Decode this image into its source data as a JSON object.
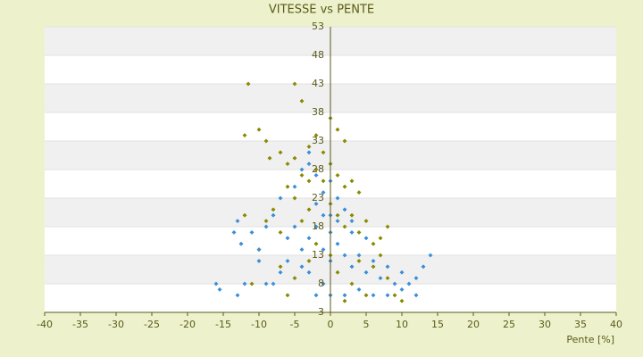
{
  "chart_data": {
    "type": "scatter",
    "title": "VITESSE vs PENTE",
    "x_label": "Pente [%]",
    "xlim": [
      -40,
      40
    ],
    "xticks": [
      -40,
      -35,
      -30,
      -25,
      -20,
      -15,
      -10,
      -5,
      0,
      5,
      10,
      15,
      20,
      25,
      30,
      35,
      40
    ],
    "ylim": [
      3,
      53
    ],
    "yticks": [
      3,
      8,
      13,
      18,
      23,
      28,
      33,
      38,
      43,
      48,
      53
    ],
    "series": [
      {
        "color": "#8a8a00",
        "x": [
          -11.5,
          -5,
          -4,
          -12,
          -10,
          -9,
          -8.5,
          -7,
          -6,
          -5,
          -3,
          -2,
          0,
          1,
          2,
          -1,
          -4,
          -3,
          -2,
          -1,
          0,
          1,
          2,
          3,
          4,
          -6,
          -5,
          -8,
          -12,
          -9,
          -7,
          -4,
          -3,
          0,
          1,
          2,
          3,
          4,
          5,
          6,
          7,
          8,
          7,
          6,
          8,
          9,
          10,
          5,
          3,
          1,
          0,
          -2,
          -3,
          -5,
          -7,
          -10,
          -11,
          -6,
          2,
          4
        ],
        "values": [
          43,
          43,
          40,
          34,
          35,
          33,
          30,
          31,
          29,
          30,
          32,
          34,
          37,
          35,
          33,
          31,
          27,
          26,
          28,
          26,
          29,
          27,
          25,
          26,
          24,
          25,
          23,
          21,
          20,
          19,
          17,
          19,
          21,
          22,
          20,
          18,
          20,
          17,
          19,
          15,
          16,
          18,
          13,
          11,
          9,
          6,
          5,
          6,
          8,
          10,
          13,
          15,
          12,
          9,
          11,
          14,
          8,
          6,
          5,
          12
        ]
      },
      {
        "color": "#3a8fd8",
        "x": [
          -16,
          -15.5,
          -13,
          -12,
          -12.5,
          -13.5,
          -13,
          -11,
          -10,
          -9,
          -8,
          -7,
          -6,
          -10,
          -9,
          -8,
          -7,
          -5,
          -4,
          -3,
          -3,
          -2,
          -1,
          0,
          1,
          2,
          3,
          -6,
          -5,
          -4,
          -3,
          -2,
          -1,
          0,
          1,
          2,
          3,
          4,
          5,
          6,
          7,
          8,
          9,
          10,
          11,
          12,
          13,
          14,
          12,
          10,
          8,
          6,
          4,
          2,
          0,
          -1,
          -2,
          -3,
          -4,
          0,
          1,
          -1,
          5,
          3,
          -2,
          0
        ],
        "values": [
          8,
          7,
          6,
          8,
          15,
          17,
          19,
          17,
          12,
          8,
          8,
          10,
          12,
          14,
          18,
          20,
          23,
          25,
          28,
          31,
          29,
          27,
          24,
          26,
          23,
          21,
          19,
          16,
          18,
          14,
          16,
          18,
          20,
          17,
          15,
          13,
          11,
          13,
          10,
          12,
          9,
          11,
          8,
          10,
          8,
          9,
          11,
          13,
          6,
          7,
          6,
          6,
          7,
          6,
          6,
          8,
          6,
          10,
          11,
          12,
          19,
          14,
          16,
          17,
          22,
          20
        ]
      }
    ]
  }
}
